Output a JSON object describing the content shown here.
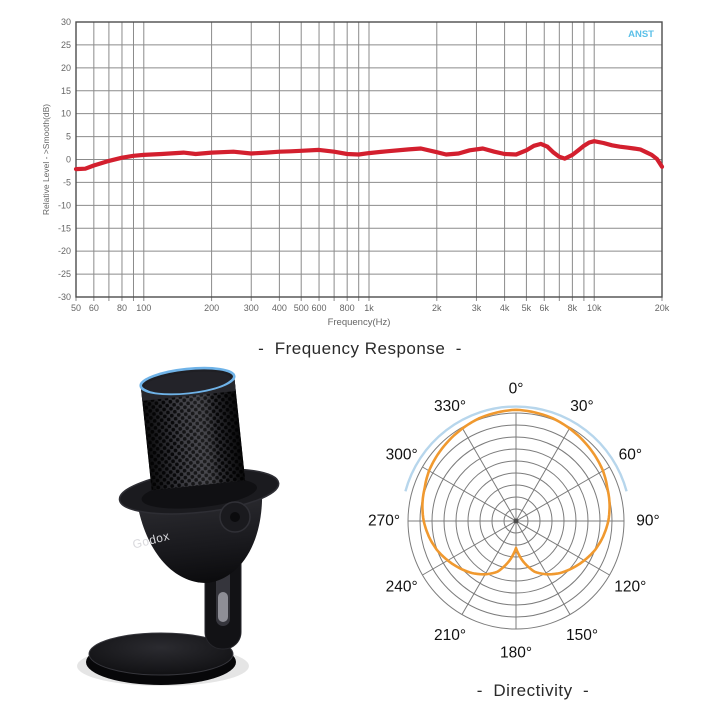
{
  "chart_data": [
    {
      "type": "line",
      "title": "-  Frequency Response  -",
      "xlabel": "Frequency(Hz)",
      "ylabel": "Relative Level - >Smooth(dB)",
      "x_scale": "log",
      "xlim": [
        50,
        20000
      ],
      "ylim": [
        -30,
        30
      ],
      "y_tick_step": 5,
      "grid": true,
      "x_gridlines": [
        50,
        60,
        70,
        80,
        90,
        100,
        200,
        300,
        400,
        500,
        600,
        700,
        800,
        900,
        1000,
        2000,
        3000,
        4000,
        5000,
        6000,
        7000,
        8000,
        9000,
        10000,
        20000
      ],
      "x_tick_labeled": [
        50,
        60,
        80,
        100,
        200,
        300,
        400,
        500,
        600,
        800,
        1000,
        2000,
        3000,
        4000,
        5000,
        6000,
        8000,
        10000,
        20000
      ],
      "annotation": "ANST",
      "annotation_color": "#5bc0e8",
      "grid_color": "#8b8b8b",
      "frame_color": "#4d4d4d",
      "tick_label_color": "#666666",
      "series": [
        {
          "name": "frequency response",
          "color": "#d31f2e",
          "points": [
            [
              50,
              -2.1
            ],
            [
              55,
              -2.0
            ],
            [
              60,
              -1.3
            ],
            [
              70,
              -0.3
            ],
            [
              80,
              0.4
            ],
            [
              90,
              0.8
            ],
            [
              100,
              1.0
            ],
            [
              120,
              1.2
            ],
            [
              150,
              1.5
            ],
            [
              170,
              1.2
            ],
            [
              200,
              1.5
            ],
            [
              250,
              1.7
            ],
            [
              300,
              1.3
            ],
            [
              350,
              1.5
            ],
            [
              400,
              1.7
            ],
            [
              450,
              1.8
            ],
            [
              500,
              1.9
            ],
            [
              600,
              2.1
            ],
            [
              700,
              1.7
            ],
            [
              800,
              1.2
            ],
            [
              900,
              1.1
            ],
            [
              1000,
              1.4
            ],
            [
              1200,
              1.8
            ],
            [
              1500,
              2.2
            ],
            [
              1700,
              2.4
            ],
            [
              2000,
              1.6
            ],
            [
              2200,
              1.1
            ],
            [
              2500,
              1.3
            ],
            [
              2800,
              2.0
            ],
            [
              3200,
              2.4
            ],
            [
              3600,
              1.7
            ],
            [
              4000,
              1.2
            ],
            [
              4500,
              1.1
            ],
            [
              5000,
              2.0
            ],
            [
              5400,
              3.0
            ],
            [
              5800,
              3.4
            ],
            [
              6200,
              2.8
            ],
            [
              6600,
              1.5
            ],
            [
              7000,
              0.6
            ],
            [
              7400,
              0.2
            ],
            [
              8000,
              1.0
            ],
            [
              8500,
              2.0
            ],
            [
              9000,
              3.0
            ],
            [
              9500,
              3.7
            ],
            [
              10000,
              4.0
            ],
            [
              11000,
              3.6
            ],
            [
              12000,
              3.1
            ],
            [
              13000,
              2.8
            ],
            [
              14000,
              2.6
            ],
            [
              15000,
              2.4
            ],
            [
              16000,
              2.2
            ],
            [
              17000,
              1.6
            ],
            [
              18000,
              1.0
            ],
            [
              19000,
              0.1
            ],
            [
              20000,
              -1.6
            ]
          ]
        }
      ]
    },
    {
      "type": "polar",
      "title": "-  Directivity  -",
      "pattern": "cardioid",
      "rings": 9,
      "angle_step_deg": 30,
      "angle_labels": [
        "0°",
        "30°",
        "60°",
        "90°",
        "120°",
        "150°",
        "180°",
        "210°",
        "240°",
        "270°",
        "300°",
        "330°"
      ],
      "grid_color": "#7c7c7c",
      "label_color": "#111111",
      "curve_color": "#f0992f",
      "secondary_curve_color": "#b7d6ec",
      "curve_symmetric": true,
      "curve_deg_r": [
        [
          0,
          1.03
        ],
        [
          10,
          1.02
        ],
        [
          20,
          1.01
        ],
        [
          30,
          0.99
        ],
        [
          40,
          0.97
        ],
        [
          50,
          0.95
        ],
        [
          60,
          0.93
        ],
        [
          70,
          0.9
        ],
        [
          80,
          0.88
        ],
        [
          90,
          0.855
        ],
        [
          100,
          0.82
        ],
        [
          110,
          0.78
        ],
        [
          120,
          0.73
        ],
        [
          130,
          0.68
        ],
        [
          140,
          0.63
        ],
        [
          150,
          0.57
        ],
        [
          160,
          0.5
        ],
        [
          170,
          0.38
        ],
        [
          180,
          0.25
        ]
      ],
      "secondary_arc": {
        "r": 1.06,
        "from_deg": -75,
        "to_deg": 75
      }
    }
  ],
  "microphone": {
    "logo": "Godox",
    "body_color": "#1d1d21",
    "led_ring_color": "#6fb3e8",
    "base_color": "#0c0c0e"
  }
}
